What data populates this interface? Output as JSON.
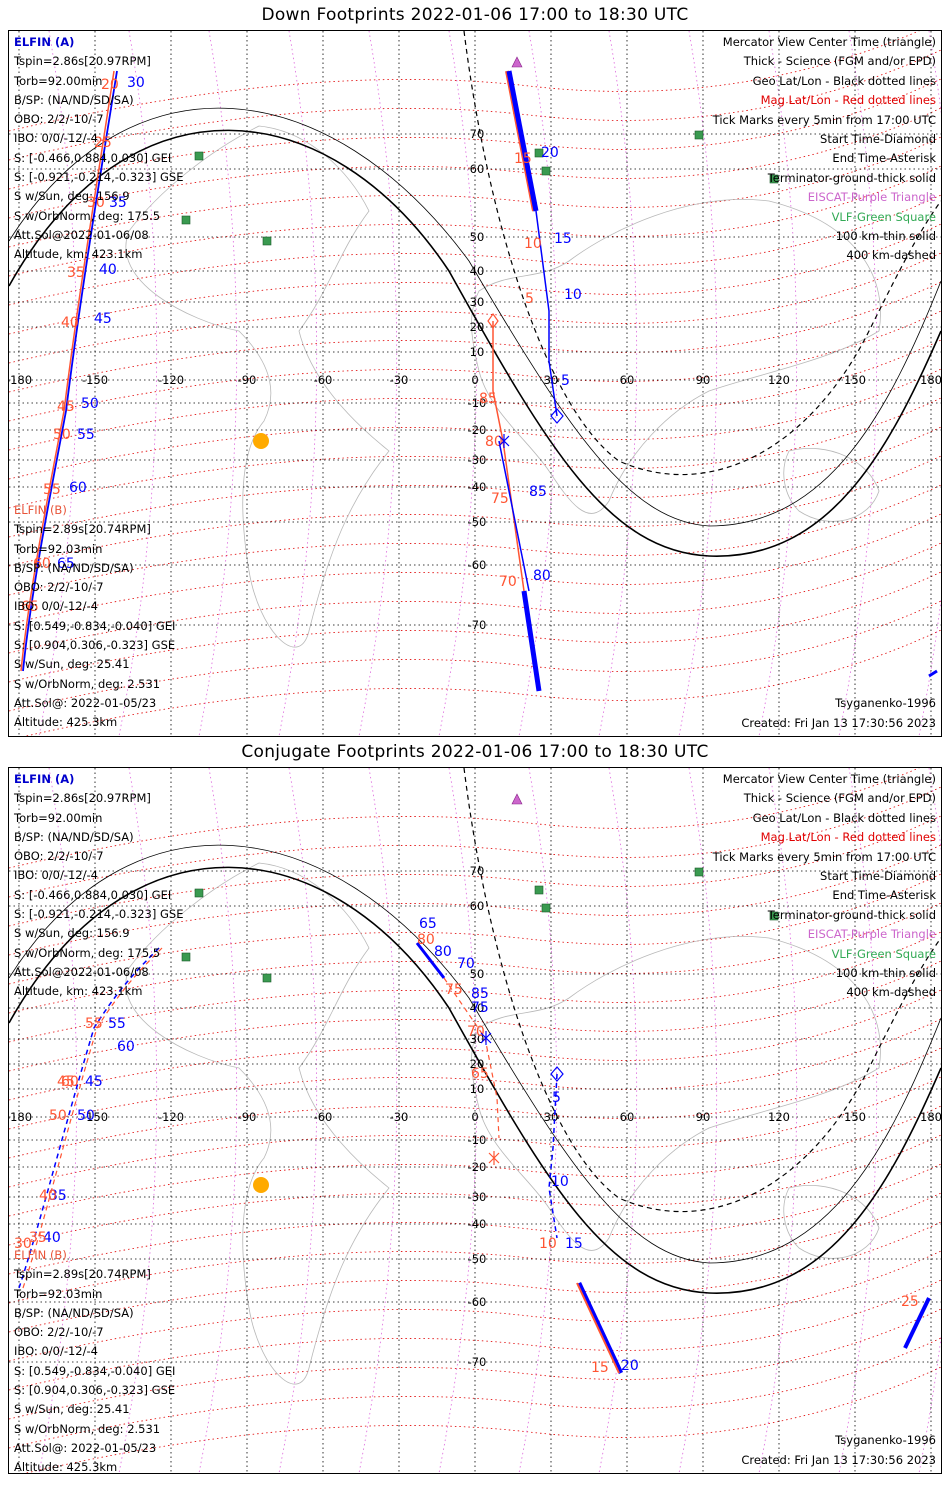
{
  "panels": [
    {
      "title": "Down Footprints 2022-01-06 17:00 to 18:30 UTC",
      "elfin_a": {
        "name": "ELFIN (A)",
        "lines": [
          "Tspin=2.86s[20.97RPM]",
          "Torb=92.00min",
          "B/SP: (NA/ND/SD/SA)",
          "OBO: 2/2/-10/-7",
          "IBO: 0/0/-12/-4",
          "S: [-0.466,0.884,0.030] GEI",
          "S: [-0.921,-0.214,-0.323] GSE",
          "S w/Sun, deg: 156.9",
          "S w/OrbNorm, deg: 175.5",
          "Att.Sol@2022-01-06/08",
          "Altitude, km: 423.1km"
        ]
      },
      "elfin_b": {
        "name": "ELFIN (B)",
        "lines": [
          "Tspin=2.89s[20.74RPM]",
          "Torb=92.03min",
          "B/SP: (NA/ND/SD/SA)",
          "OBO: 2/2/-10/-7",
          "IBO: 0/0/-12/-4",
          "S: [0.549,-0.834,-0.040] GEI",
          "S: [0.904,0.306,-0.323] GSE",
          "S w/Sun, deg: 25.41",
          "S w/OrbNorm, deg: 2.531",
          "Att.Sol@: 2022-01-05/23",
          "Altitude: 425.3km"
        ]
      },
      "footer_right": [
        "Tsyganenko-1996",
        "Created: Fri Jan 13 17:30:56 2023"
      ]
    },
    {
      "title": "Conjugate Footprints 2022-01-06 17:00 to 18:30 UTC",
      "elfin_a": {
        "name": "ELFIN (A)",
        "lines": [
          "Tspin=2.86s[20.97RPM]",
          "Torb=92.00min",
          "B/SP: (NA/ND/SD/SA)",
          "OBO: 2/2/-10/-7",
          "IBO: 0/0/-12/-4",
          "S: [-0.466,0.884,0.030] GEI",
          "S: [-0.921,-0.214,-0.323] GSE",
          "S w/Sun, deg: 156.9",
          "S w/OrbNorm, deg: 175.5",
          "Att.Sol@2022-01-06/08",
          "Altitude, km: 423.1km"
        ]
      },
      "elfin_b": {
        "name": "ELFIN (B)",
        "lines": [
          "Tspin=2.89s[20.74RPM]",
          "Torb=92.03min",
          "B/SP: (NA/ND/SD/SA)",
          "OBO: 2/2/-10/-7",
          "IBO: 0/0/-12/-4",
          "S: [0.549,-0.834,-0.040] GEI",
          "S: [0.904,0.306,-0.323] GSE",
          "S w/Sun, deg: 25.41",
          "S w/OrbNorm, deg: 2.531",
          "Att.Sol@: 2022-01-05/23",
          "Altitude: 425.3km"
        ]
      },
      "footer_right": [
        "Tsyganenko-1996",
        "Created: Fri Jan 13 17:30:56 2023"
      ]
    }
  ],
  "legend": [
    {
      "text": "Mercator View Center Time (triangle)",
      "color": "#000000"
    },
    {
      "text": "Thick - Science (FGM and/or EPD)",
      "color": "#000000"
    },
    {
      "text": "Geo Lat/Lon - Black dotted lines",
      "color": "#000000"
    },
    {
      "text": "Mag Lat/Lon - Red dotted lines",
      "color": "#e00000"
    },
    {
      "text": "Tick Marks every 5min from 17:00 UTC",
      "color": "#000000"
    },
    {
      "text": "Start Time-Diamond",
      "color": "#000000"
    },
    {
      "text": "End Time-Asterisk",
      "color": "#000000"
    },
    {
      "text": "Terminator-ground-thick solid",
      "color": "#000000"
    },
    {
      "text": "EISCAT-Purple Triangle",
      "color": "#cc66cc"
    },
    {
      "text": "VLF-Green Square",
      "color": "#33aa55"
    },
    {
      "text": "100 km-thin solid",
      "color": "#000000"
    },
    {
      "text": "400 km-dashed",
      "color": "#000000"
    }
  ],
  "axes": {
    "lon_ticks": [
      "-180",
      "-150",
      "-120",
      "-90",
      "-60",
      "-30",
      "0",
      "30",
      "60",
      "90",
      "120",
      "150",
      "180"
    ],
    "lat_ticks": [
      "70",
      "60",
      "50",
      "40",
      "30",
      "20",
      "10",
      "-10",
      "-20",
      "-30",
      "-40",
      "-50",
      "-60",
      "-70"
    ]
  },
  "colors": {
    "elfin_a": "#0000ff",
    "elfin_b": "#ff5533",
    "geo_grid": "#000000",
    "mag_grid": "#e00000",
    "sun": "#ffaa00"
  },
  "tracks": {
    "down": {
      "a_minutes": [
        "30",
        "35",
        "40",
        "45",
        "50",
        "55",
        "60",
        "65",
        "5",
        "10",
        "15",
        "20",
        "85",
        "80"
      ],
      "b_minutes": [
        "20",
        "25",
        "30",
        "35",
        "40",
        "45",
        "50",
        "55",
        "60",
        "65",
        "85",
        "80",
        "75",
        "70",
        "15",
        "10",
        "5"
      ]
    },
    "conj": {
      "a_minutes": [
        "80",
        "85",
        "5",
        "10",
        "15",
        "20",
        "35",
        "40",
        "45",
        "50",
        "55",
        "60",
        "65",
        "70",
        "75"
      ],
      "b_minutes": [
        "80",
        "75",
        "70",
        "65",
        "60",
        "55",
        "50",
        "45",
        "40",
        "35",
        "30",
        "10",
        "15",
        "25"
      ]
    }
  }
}
